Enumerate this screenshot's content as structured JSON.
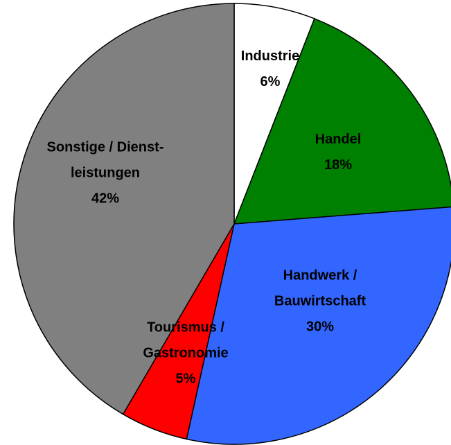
{
  "chart_data": {
    "type": "pie",
    "categories": [
      [
        "Industrie"
      ],
      [
        "Handel"
      ],
      [
        "Handwerk /",
        "Bauwirtschaft"
      ],
      [
        "Tourismus /",
        "Gastronomie"
      ],
      [
        "Sonstige / Dienst-",
        "leistungen"
      ]
    ],
    "values": [
      6,
      18,
      30,
      5,
      42
    ],
    "value_labels": [
      "6%",
      "18%",
      "30%",
      "5%",
      "42%"
    ],
    "colors": [
      "#ffffff",
      "#008000",
      "#3366ff",
      "#ff0000",
      "#808080"
    ]
  }
}
